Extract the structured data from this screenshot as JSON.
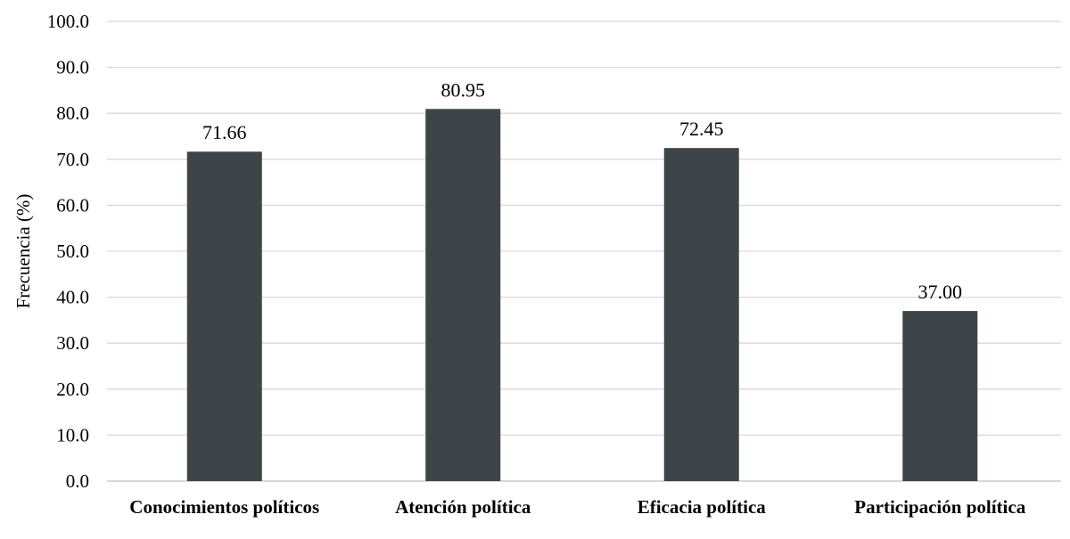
{
  "chart_data": {
    "type": "bar",
    "categories": [
      "Conocimientos políticos",
      "Atención política",
      "Eficacia política",
      "Participación política"
    ],
    "values": [
      71.66,
      80.95,
      72.45,
      37.0
    ],
    "value_labels": [
      "71.66",
      "80.95",
      "72.45",
      "37.00"
    ],
    "title": "",
    "xlabel": "",
    "ylabel": "Frecuencia (%)",
    "ylim": [
      0,
      100
    ],
    "y_ticks": [
      0,
      10,
      20,
      30,
      40,
      50,
      60,
      70,
      80,
      90,
      100
    ],
    "y_tick_labels": [
      "0.0",
      "10.0",
      "20.0",
      "30.0",
      "40.0",
      "50.0",
      "60.0",
      "70.0",
      "80.0",
      "90.0",
      "100.0"
    ],
    "grid": true,
    "legend": "none",
    "bar_color": "#3e4548"
  }
}
